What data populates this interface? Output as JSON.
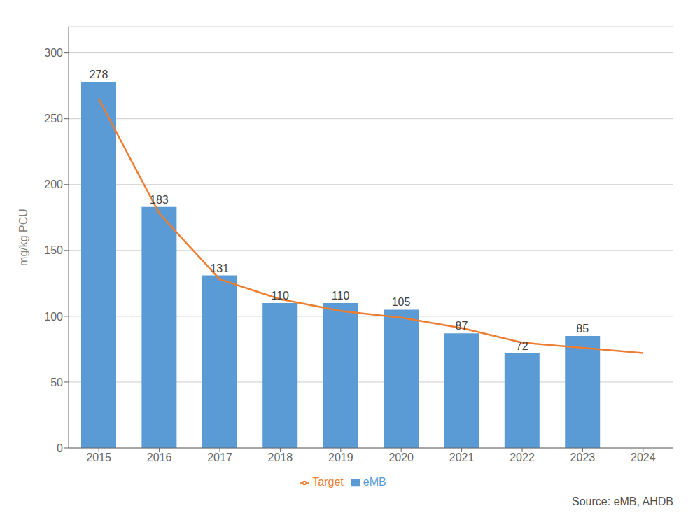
{
  "chart_data": {
    "type": "bar",
    "categories": [
      "2015",
      "2016",
      "2017",
      "2018",
      "2019",
      "2020",
      "2021",
      "2022",
      "2023",
      "2024"
    ],
    "series": [
      {
        "name": "eMB",
        "type": "bar",
        "color": "#5B9BD5",
        "data_labels": true,
        "values": [
          278,
          183,
          131,
          110,
          110,
          105,
          87,
          72,
          85,
          null
        ]
      },
      {
        "name": "Target",
        "type": "line",
        "color": "#ED7D31",
        "values": [
          265,
          178,
          128,
          113,
          104,
          99,
          91,
          80,
          76,
          72
        ]
      }
    ],
    "ylabel": "mg/kg PCU",
    "ylim": [
      0,
      320
    ],
    "yticks": [
      0,
      50,
      100,
      150,
      200,
      250,
      300
    ],
    "grid": true,
    "legend": "bottom",
    "annotations": [
      "Source: eMB, AHDB"
    ]
  }
}
